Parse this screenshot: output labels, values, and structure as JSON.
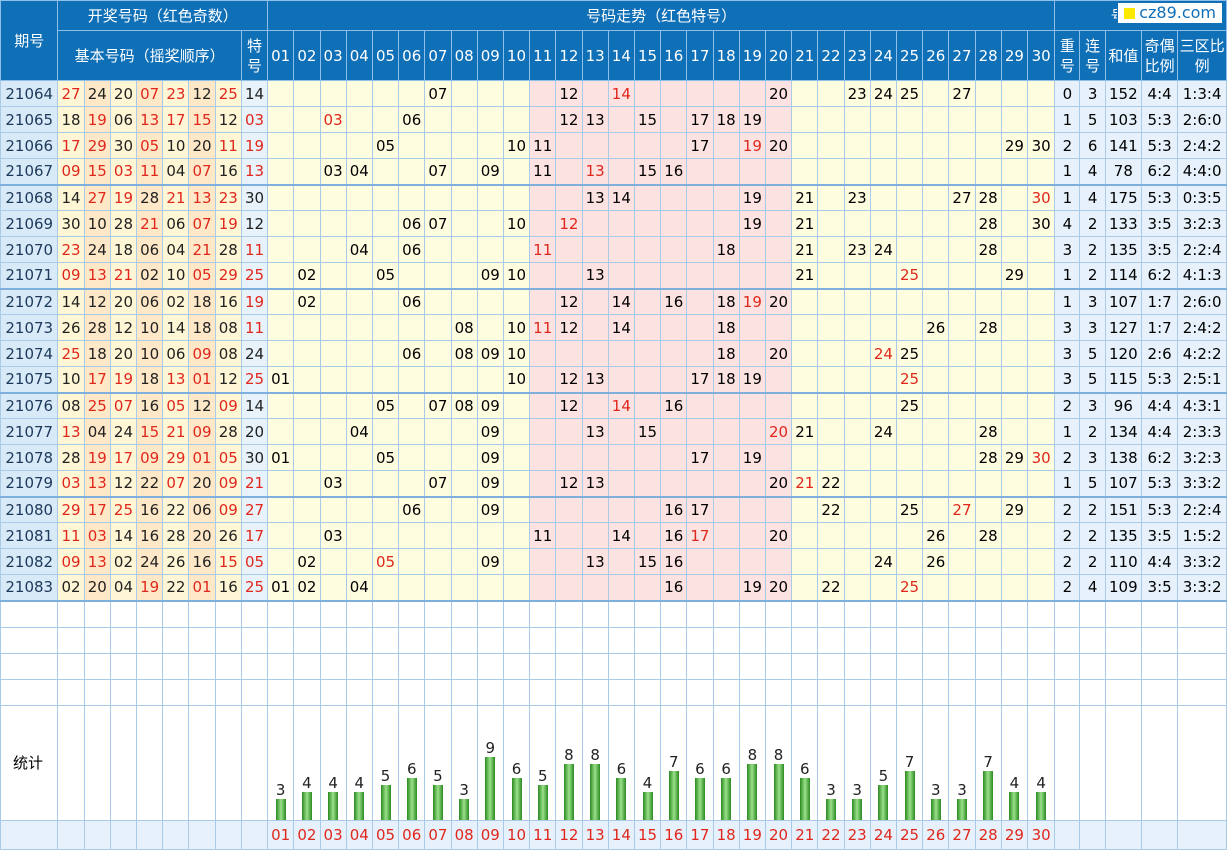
{
  "header": {
    "period": "期号",
    "draw_group": "开奖号码（红色奇数）",
    "basic": "基本号码（摇奖顺序）",
    "special": "特号",
    "trend": "号码走势（红色特号）",
    "analysis": "号码分析",
    "repeat": "重号",
    "consec": "连号",
    "sum": "和值",
    "oddeven": "奇偶比例",
    "zone": "三区比例"
  },
  "logo": {
    "text": "cz89.com"
  },
  "numbers": [
    "01",
    "02",
    "03",
    "04",
    "05",
    "06",
    "07",
    "08",
    "09",
    "10",
    "11",
    "12",
    "13",
    "14",
    "15",
    "16",
    "17",
    "18",
    "19",
    "20",
    "21",
    "22",
    "23",
    "24",
    "25",
    "26",
    "27",
    "28",
    "29",
    "30"
  ],
  "rows": [
    {
      "period": "21064",
      "basic": [
        "27",
        "24",
        "20",
        "07",
        "23",
        "12",
        "25"
      ],
      "special": "14",
      "trend": [
        "07",
        "12",
        "14",
        "20",
        "23",
        "24",
        "25",
        "27"
      ],
      "repeat": "0",
      "consec": "3",
      "sum": "152",
      "oddeven": "4:4",
      "zone": "1:3:4"
    },
    {
      "period": "21065",
      "basic": [
        "18",
        "19",
        "06",
        "13",
        "17",
        "15",
        "12"
      ],
      "special": "03",
      "trend": [
        "03",
        "06",
        "12",
        "13",
        "15",
        "17",
        "18",
        "19"
      ],
      "repeat": "1",
      "consec": "5",
      "sum": "103",
      "oddeven": "5:3",
      "zone": "2:6:0"
    },
    {
      "period": "21066",
      "basic": [
        "17",
        "29",
        "30",
        "05",
        "10",
        "20",
        "11"
      ],
      "special": "19",
      "trend": [
        "05",
        "10",
        "11",
        "17",
        "19",
        "20",
        "29",
        "30"
      ],
      "repeat": "2",
      "consec": "6",
      "sum": "141",
      "oddeven": "5:3",
      "zone": "2:4:2"
    },
    {
      "period": "21067",
      "basic": [
        "09",
        "15",
        "03",
        "11",
        "04",
        "07",
        "16"
      ],
      "special": "13",
      "trend": [
        "03",
        "04",
        "07",
        "09",
        "11",
        "13",
        "15",
        "16"
      ],
      "repeat": "1",
      "consec": "4",
      "sum": "78",
      "oddeven": "6:2",
      "zone": "4:4:0"
    },
    {
      "period": "21068",
      "basic": [
        "14",
        "27",
        "19",
        "28",
        "21",
        "13",
        "23"
      ],
      "special": "30",
      "trend": [
        "13",
        "14",
        "19",
        "21",
        "23",
        "27",
        "28",
        "30"
      ],
      "repeat": "1",
      "consec": "4",
      "sum": "175",
      "oddeven": "5:3",
      "zone": "0:3:5"
    },
    {
      "period": "21069",
      "basic": [
        "30",
        "10",
        "28",
        "21",
        "06",
        "07",
        "19"
      ],
      "special": "12",
      "trend": [
        "06",
        "07",
        "10",
        "12",
        "19",
        "21",
        "28",
        "30"
      ],
      "repeat": "4",
      "consec": "2",
      "sum": "133",
      "oddeven": "3:5",
      "zone": "3:2:3"
    },
    {
      "period": "21070",
      "basic": [
        "23",
        "24",
        "18",
        "06",
        "04",
        "21",
        "28"
      ],
      "special": "11",
      "trend": [
        "04",
        "06",
        "11",
        "18",
        "21",
        "23",
        "24",
        "28"
      ],
      "repeat": "3",
      "consec": "2",
      "sum": "135",
      "oddeven": "3:5",
      "zone": "2:2:4"
    },
    {
      "period": "21071",
      "basic": [
        "09",
        "13",
        "21",
        "02",
        "10",
        "05",
        "29"
      ],
      "special": "25",
      "trend": [
        "02",
        "05",
        "09",
        "10",
        "13",
        "21",
        "25",
        "29"
      ],
      "repeat": "1",
      "consec": "2",
      "sum": "114",
      "oddeven": "6:2",
      "zone": "4:1:3"
    },
    {
      "period": "21072",
      "basic": [
        "14",
        "12",
        "20",
        "06",
        "02",
        "18",
        "16"
      ],
      "special": "19",
      "trend": [
        "02",
        "06",
        "12",
        "14",
        "16",
        "18",
        "19",
        "20"
      ],
      "repeat": "1",
      "consec": "3",
      "sum": "107",
      "oddeven": "1:7",
      "zone": "2:6:0"
    },
    {
      "period": "21073",
      "basic": [
        "26",
        "28",
        "12",
        "10",
        "14",
        "18",
        "08"
      ],
      "special": "11",
      "trend": [
        "08",
        "10",
        "11",
        "12",
        "14",
        "18",
        "26",
        "28"
      ],
      "repeat": "3",
      "consec": "3",
      "sum": "127",
      "oddeven": "1:7",
      "zone": "2:4:2"
    },
    {
      "period": "21074",
      "basic": [
        "25",
        "18",
        "20",
        "10",
        "06",
        "09",
        "08"
      ],
      "special": "24",
      "trend": [
        "06",
        "08",
        "09",
        "10",
        "18",
        "20",
        "24",
        "25"
      ],
      "repeat": "3",
      "consec": "5",
      "sum": "120",
      "oddeven": "2:6",
      "zone": "4:2:2"
    },
    {
      "period": "21075",
      "basic": [
        "10",
        "17",
        "19",
        "18",
        "13",
        "01",
        "12"
      ],
      "special": "25",
      "trend": [
        "01",
        "10",
        "12",
        "13",
        "17",
        "18",
        "19",
        "25"
      ],
      "repeat": "3",
      "consec": "5",
      "sum": "115",
      "oddeven": "5:3",
      "zone": "2:5:1"
    },
    {
      "period": "21076",
      "basic": [
        "08",
        "25",
        "07",
        "16",
        "05",
        "12",
        "09"
      ],
      "special": "14",
      "trend": [
        "05",
        "07",
        "08",
        "09",
        "12",
        "14",
        "16",
        "25"
      ],
      "repeat": "2",
      "consec": "3",
      "sum": "96",
      "oddeven": "4:4",
      "zone": "4:3:1"
    },
    {
      "period": "21077",
      "basic": [
        "13",
        "04",
        "24",
        "15",
        "21",
        "09",
        "28"
      ],
      "special": "20",
      "trend": [
        "04",
        "09",
        "13",
        "15",
        "20",
        "21",
        "24",
        "28"
      ],
      "repeat": "1",
      "consec": "2",
      "sum": "134",
      "oddeven": "4:4",
      "zone": "2:3:3"
    },
    {
      "period": "21078",
      "basic": [
        "28",
        "19",
        "17",
        "09",
        "29",
        "01",
        "05"
      ],
      "special": "30",
      "trend": [
        "01",
        "05",
        "09",
        "17",
        "19",
        "28",
        "29",
        "30"
      ],
      "repeat": "2",
      "consec": "3",
      "sum": "138",
      "oddeven": "6:2",
      "zone": "3:2:3"
    },
    {
      "period": "21079",
      "basic": [
        "03",
        "13",
        "12",
        "22",
        "07",
        "20",
        "09"
      ],
      "special": "21",
      "trend": [
        "03",
        "07",
        "09",
        "12",
        "13",
        "20",
        "21",
        "22"
      ],
      "repeat": "1",
      "consec": "5",
      "sum": "107",
      "oddeven": "5:3",
      "zone": "3:3:2"
    },
    {
      "period": "21080",
      "basic": [
        "29",
        "17",
        "25",
        "16",
        "22",
        "06",
        "09"
      ],
      "special": "27",
      "trend": [
        "06",
        "09",
        "16",
        "17",
        "22",
        "25",
        "27",
        "29"
      ],
      "repeat": "2",
      "consec": "2",
      "sum": "151",
      "oddeven": "5:3",
      "zone": "2:2:4"
    },
    {
      "period": "21081",
      "basic": [
        "11",
        "03",
        "14",
        "16",
        "28",
        "20",
        "26"
      ],
      "special": "17",
      "trend": [
        "03",
        "11",
        "14",
        "16",
        "17",
        "20",
        "26",
        "28"
      ],
      "repeat": "2",
      "consec": "2",
      "sum": "135",
      "oddeven": "3:5",
      "zone": "1:5:2"
    },
    {
      "period": "21082",
      "basic": [
        "09",
        "13",
        "02",
        "24",
        "26",
        "16",
        "15"
      ],
      "special": "05",
      "trend": [
        "02",
        "05",
        "09",
        "13",
        "15",
        "16",
        "24",
        "26"
      ],
      "repeat": "2",
      "consec": "2",
      "sum": "110",
      "oddeven": "4:4",
      "zone": "3:3:2"
    },
    {
      "period": "21083",
      "basic": [
        "02",
        "20",
        "04",
        "19",
        "22",
        "01",
        "16"
      ],
      "special": "25",
      "trend": [
        "01",
        "02",
        "04",
        "16",
        "19",
        "20",
        "22",
        "25"
      ],
      "repeat": "2",
      "consec": "4",
      "sum": "109",
      "oddeven": "3:5",
      "zone": "3:3:2"
    }
  ],
  "stats": {
    "label": "统计",
    "counts": [
      3,
      4,
      4,
      4,
      5,
      6,
      5,
      3,
      9,
      6,
      5,
      8,
      8,
      6,
      4,
      7,
      6,
      6,
      8,
      8,
      6,
      3,
      3,
      5,
      7,
      3,
      3,
      7,
      4,
      4
    ]
  },
  "colors": {
    "header": "#0f6fb7",
    "odd": "#e0271c",
    "bar": "#2a8a1f",
    "trend_pink": "#fde2e2",
    "trend_yellow": "#fffde0"
  }
}
